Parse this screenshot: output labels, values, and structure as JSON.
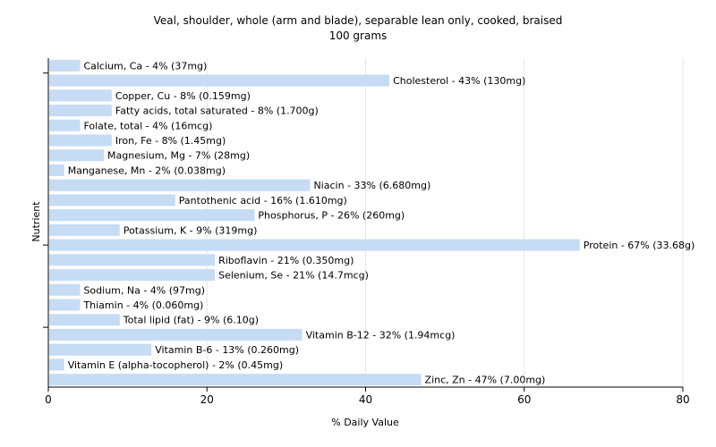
{
  "chart_data": {
    "type": "bar",
    "orientation": "horizontal",
    "title": "Veal, shoulder, whole (arm and blade), separable lean only, cooked, braised",
    "subtitle": "100 grams",
    "xlabel": "% Daily Value",
    "ylabel": "Nutrient",
    "xlim": [
      0,
      80
    ],
    "xticks": [
      0,
      20,
      40,
      60,
      80
    ],
    "grid": true,
    "bar_color": "#c6dcf5",
    "categories": [
      "Calcium, Ca",
      "Cholesterol",
      "Copper, Cu",
      "Fatty acids, total saturated",
      "Folate, total",
      "Iron, Fe",
      "Magnesium, Mg",
      "Manganese, Mn",
      "Niacin",
      "Pantothenic acid",
      "Phosphorus, P",
      "Potassium, K",
      "Protein",
      "Riboflavin",
      "Selenium, Se",
      "Sodium, Na",
      "Thiamin",
      "Total lipid (fat)",
      "Vitamin B-12",
      "Vitamin B-6",
      "Vitamin E (alpha-tocopherol)",
      "Zinc, Zn"
    ],
    "values": [
      4,
      43,
      8,
      8,
      4,
      8,
      7,
      2,
      33,
      16,
      26,
      9,
      67,
      21,
      21,
      4,
      4,
      9,
      32,
      13,
      2,
      47
    ],
    "bar_labels": [
      "Calcium, Ca - 4% (37mg)",
      "Cholesterol - 43% (130mg)",
      "Copper, Cu - 8% (0.159mg)",
      "Fatty acids, total saturated - 8% (1.700g)",
      "Folate, total - 4% (16mcg)",
      "Iron, Fe - 8% (1.45mg)",
      "Magnesium, Mg - 7% (28mg)",
      "Manganese, Mn - 2% (0.038mg)",
      "Niacin - 33% (6.680mg)",
      "Pantothenic acid - 16% (1.610mg)",
      "Phosphorus, P - 26% (260mg)",
      "Potassium, K - 9% (319mg)",
      "Protein - 67% (33.68g)",
      "Riboflavin - 21% (0.350mg)",
      "Selenium, Se - 21% (14.7mcg)",
      "Sodium, Na - 4% (97mg)",
      "Thiamin - 4% (0.060mg)",
      "Total lipid (fat) - 9% (6.10g)",
      "Vitamin B-12 - 32% (1.94mcg)",
      "Vitamin B-6 - 13% (0.260mg)",
      "Vitamin E (alpha-tocopherol) - 2% (0.45mg)",
      "Zinc, Zn - 47% (7.00mg)"
    ]
  }
}
